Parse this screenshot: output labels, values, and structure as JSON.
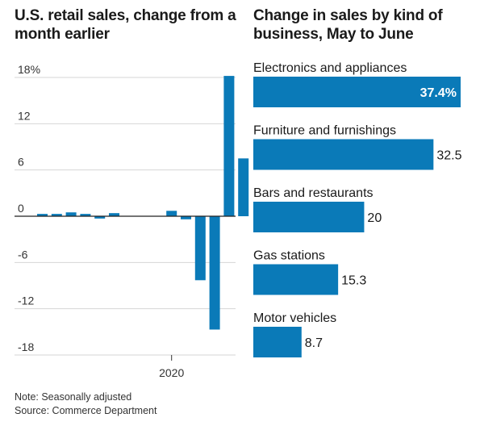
{
  "chart_data": [
    {
      "type": "bar",
      "title": "U.S. retail sales, change from a month earlier",
      "y_ticks": [
        18,
        12,
        6,
        0,
        -6,
        -12,
        -18
      ],
      "y_tick_labels": [
        "18%",
        "12",
        "6",
        "0",
        "-6",
        "-12",
        "-18"
      ],
      "ylim": [
        -18,
        18
      ],
      "x_tick_label": "2020",
      "x_tick_index": 9,
      "values": [
        0.3,
        0.3,
        0.5,
        0.3,
        -0.3,
        0.4,
        0.0,
        0.0,
        0.0,
        0.7,
        -0.4,
        -8.3,
        -14.7,
        18.2,
        7.5
      ],
      "grid": true,
      "bar_color": "#0a7ab8"
    },
    {
      "type": "bar",
      "orientation": "horizontal",
      "title": "Change in sales by kind of business, May to June",
      "categories": [
        "Electronics and appliances",
        "Furniture and furnishings",
        "Bars and restaurants",
        "Gas stations",
        "Motor vehicles"
      ],
      "values": [
        37.4,
        32.5,
        20,
        15.3,
        8.7
      ],
      "value_labels": [
        "37.4%",
        "32.5",
        "20",
        "15.3",
        "8.7"
      ],
      "bar_color": "#0a7ab8"
    }
  ],
  "footer": {
    "note": "Note: Seasonally adjusted",
    "source": "Source: Commerce Department"
  }
}
